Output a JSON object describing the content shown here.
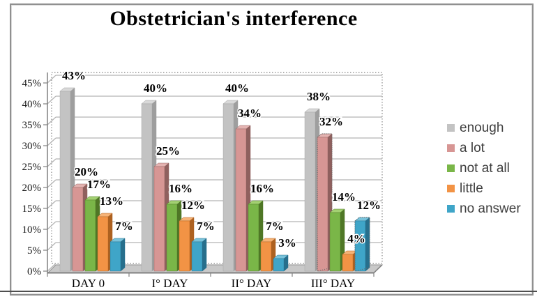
{
  "title": "Obstetrician's interference",
  "chart_data": {
    "type": "bar",
    "style": "3d-clustered-column",
    "title": "Obstetrician's interference",
    "categories": [
      "DAY 0",
      "I° DAY",
      "II° DAY",
      "III° DAY"
    ],
    "series": [
      {
        "name": "enough",
        "values": [
          43,
          40,
          40,
          38
        ],
        "color": "#c3c3c3",
        "side": "#9e9e9e",
        "top": "#d9d9d9"
      },
      {
        "name": "a lot",
        "values": [
          20,
          25,
          34,
          32
        ],
        "color": "#d79694",
        "side": "#8f605e",
        "top": "#e4b3b1"
      },
      {
        "name": "not at all",
        "values": [
          17,
          16,
          16,
          14
        ],
        "color": "#7ab648",
        "side": "#4f7726",
        "top": "#a3d172"
      },
      {
        "name": "little",
        "values": [
          13,
          12,
          7,
          4
        ],
        "color": "#f29345",
        "side": "#ad6120",
        "top": "#f6b377"
      },
      {
        "name": "no answer",
        "values": [
          7,
          7,
          3,
          12
        ],
        "color": "#3fa5c8",
        "side": "#276f8c",
        "top": "#79c3db"
      }
    ],
    "xlabel": "",
    "ylabel": "",
    "ylim": [
      0,
      45
    ],
    "ytick_step": 5,
    "y_tick_labels": [
      "0%",
      "5%",
      "10%",
      "15%",
      "20%",
      "25%",
      "30%",
      "35%",
      "40%",
      "45%"
    ],
    "data_label_format": "{v}%",
    "grid": true,
    "legend_position": "right"
  },
  "selection": {
    "plot_area_marquee": true,
    "selected_points": [
      {
        "series": "a lot",
        "category": "III° DAY"
      },
      {
        "series": "no answer",
        "category": "III° DAY"
      }
    ]
  },
  "colors": {
    "gridline": "#b3b3b3",
    "axis": "#808080",
    "floor_fill": "#c9c9c9",
    "floor_edge": "#8e8e8e",
    "marquee": "#999999",
    "frame_border": "#909090",
    "bottom_rule": "#4f4f4f",
    "legend_text": "#3f3f3f"
  }
}
